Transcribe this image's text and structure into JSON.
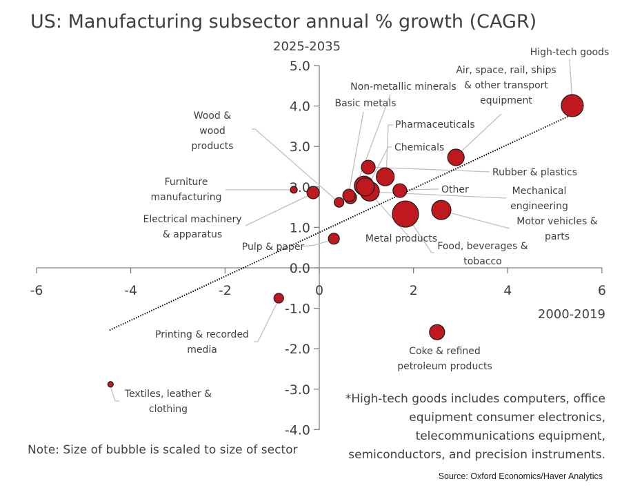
{
  "chart_data": {
    "type": "scatter",
    "subtype": "bubble",
    "title": "US: Manufacturing subsector annual % growth (CAGR)",
    "ylabel": "2025-2035",
    "xlabel": "2000-2019",
    "xlim": [
      -6,
      6
    ],
    "ylim": [
      -4,
      5
    ],
    "xticks": [
      "-6",
      "-4",
      "-2",
      "0",
      "2",
      "4",
      "6"
    ],
    "yticks": [
      "5.0",
      "4.0",
      "3.0",
      "2.0",
      "1.0",
      "0.0",
      "-1.0",
      "-2.0",
      "-3.0",
      "-4.0"
    ],
    "grid": false,
    "bubble_color": "#c0181f",
    "trendline": {
      "style": "dotted",
      "slope": 0.543,
      "intercept": 0.875,
      "x_range": [
        -4.45,
        5.37
      ]
    },
    "points": [
      {
        "name": "High-tech goods",
        "label": [
          "High-tech goods"
        ],
        "x": 5.37,
        "y": 4.01,
        "size": 16
      },
      {
        "name": "Air, space, rail, ships & other transport equipment",
        "label": [
          "Air, space, rail, ships",
          "& other transport",
          "equipment"
        ],
        "x": 2.9,
        "y": 2.73,
        "size": 12
      },
      {
        "name": "Non-metallic minerals",
        "label": [
          "Non-metallic minerals"
        ],
        "x": 0.66,
        "y": 1.74,
        "size": 9
      },
      {
        "name": "Basic metals",
        "label": [
          "Basic metals"
        ],
        "x": 0.63,
        "y": 1.79,
        "size": 9
      },
      {
        "name": "Pharmaceuticals",
        "label": [
          "Pharmaceuticals"
        ],
        "x": 1.4,
        "y": 2.25,
        "size": 13
      },
      {
        "name": "Chemicals",
        "label": [
          "Chemicals"
        ],
        "x": 0.95,
        "y": 2.03,
        "size": 14
      },
      {
        "name": "Rubber & plastics",
        "label": [
          "Rubber & plastics"
        ],
        "x": 1.04,
        "y": 2.49,
        "size": 10
      },
      {
        "name": "Other",
        "label": [
          "Other"
        ],
        "x": 1.71,
        "y": 1.91,
        "size": 10
      },
      {
        "name": "Mechanical engineering",
        "label": [
          "Mechanical",
          "engineering"
        ],
        "x": 1.07,
        "y": 1.89,
        "size": 14
      },
      {
        "name": "Motor vehicles & parts",
        "label": [
          "Motor vehicles &",
          "parts"
        ],
        "x": 2.59,
        "y": 1.43,
        "size": 14
      },
      {
        "name": "Food, beverages & tobacco",
        "label": [
          "Food, beverages &",
          "tobacco"
        ],
        "x": 1.83,
        "y": 1.33,
        "size": 19
      },
      {
        "name": "Metal products",
        "label": [
          "Metal products"
        ],
        "x": 0.98,
        "y": 2.0,
        "size": 13
      },
      {
        "name": "Wood & wood products",
        "label": [
          "Wood &",
          "wood",
          "products"
        ],
        "x": 0.42,
        "y": 1.62,
        "size": 7
      },
      {
        "name": "Furniture manufacturing",
        "label": [
          "Furniture",
          "manufacturing"
        ],
        "x": -0.54,
        "y": 1.93,
        "size": 5
      },
      {
        "name": "Electrical machinery & apparatus",
        "label": [
          "Electrical machinery",
          "& apparatus"
        ],
        "x": -0.13,
        "y": 1.86,
        "size": 9
      },
      {
        "name": "Pulp & paper",
        "label": [
          "Pulp & paper"
        ],
        "x": 0.31,
        "y": 0.72,
        "size": 8
      },
      {
        "name": "Printing & recorded media",
        "label": [
          "Printing & recorded",
          "media"
        ],
        "x": -0.86,
        "y": -0.75,
        "size": 7
      },
      {
        "name": "Coke & refined petroleum products",
        "label": [
          "Coke & refined",
          "petroleum products"
        ],
        "x": 2.5,
        "y": -1.59,
        "size": 11
      },
      {
        "name": "Textiles, leather & clothing",
        "label": [
          "Textiles, leather &",
          "clothing"
        ],
        "x": -4.43,
        "y": -2.88,
        "size": 4
      }
    ],
    "annotations": {
      "footnote": [
        "*High-tech goods includes computers, office",
        "equipment consumer electronics,",
        "telecommunications equipment,",
        "semiconductors, and precision instruments."
      ],
      "note": "Note: Size of bubble is scaled to size of sector",
      "source": "Source: Oxford Economics/Haver Analytics"
    }
  }
}
